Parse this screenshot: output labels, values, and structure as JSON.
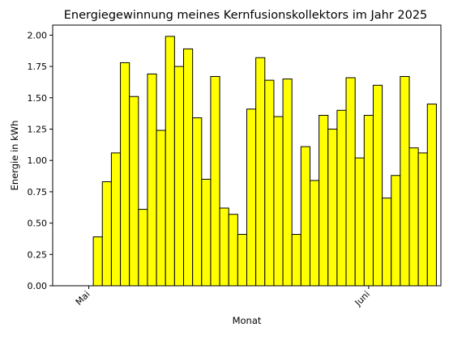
{
  "chart_data": {
    "type": "bar",
    "title": "Energiegewinnung meines Kernfusionskollektors im Jahr 2025",
    "xlabel": "Monat",
    "ylabel": "Energie in kWh",
    "ylim": [
      0,
      2.08
    ],
    "yticks": [
      "0.00",
      "0.25",
      "0.50",
      "0.75",
      "1.00",
      "1.25",
      "1.50",
      "1.75",
      "2.00"
    ],
    "xlim": [
      "2025-04-27",
      "2025-06-09"
    ],
    "xtick_labels": [
      {
        "date": "2025-05-01",
        "label": "Mai"
      },
      {
        "date": "2025-06-01",
        "label": "Juni"
      }
    ],
    "bar_color": "#ffff00",
    "edge_color": "#000000",
    "grid": false,
    "x": [
      "2025-05-02",
      "2025-05-03",
      "2025-05-04",
      "2025-05-05",
      "2025-05-06",
      "2025-05-07",
      "2025-05-08",
      "2025-05-09",
      "2025-05-10",
      "2025-05-11",
      "2025-05-12",
      "2025-05-13",
      "2025-05-14",
      "2025-05-15",
      "2025-05-16",
      "2025-05-17",
      "2025-05-18",
      "2025-05-19",
      "2025-05-20",
      "2025-05-21",
      "2025-05-22",
      "2025-05-23",
      "2025-05-24",
      "2025-05-25",
      "2025-05-26",
      "2025-05-27",
      "2025-05-28",
      "2025-05-29",
      "2025-05-30",
      "2025-05-31",
      "2025-06-01",
      "2025-06-02",
      "2025-06-03",
      "2025-06-04",
      "2025-06-05",
      "2025-06-06",
      "2025-06-07",
      "2025-06-08",
      "2025-06-09"
    ],
    "values": [
      0.39,
      0.83,
      1.06,
      1.78,
      1.51,
      0.61,
      1.69,
      1.24,
      1.99,
      1.75,
      1.89,
      1.34,
      0.85,
      1.67,
      0.62,
      0.57,
      0.41,
      1.41,
      1.82,
      1.64,
      1.35,
      1.65,
      0.41,
      1.11,
      0.84,
      1.36,
      1.25,
      1.4,
      1.66,
      1.02,
      1.36,
      1.6,
      0.7,
      0.88,
      1.67,
      1.1,
      1.06,
      1.45,
      0.0
    ]
  }
}
